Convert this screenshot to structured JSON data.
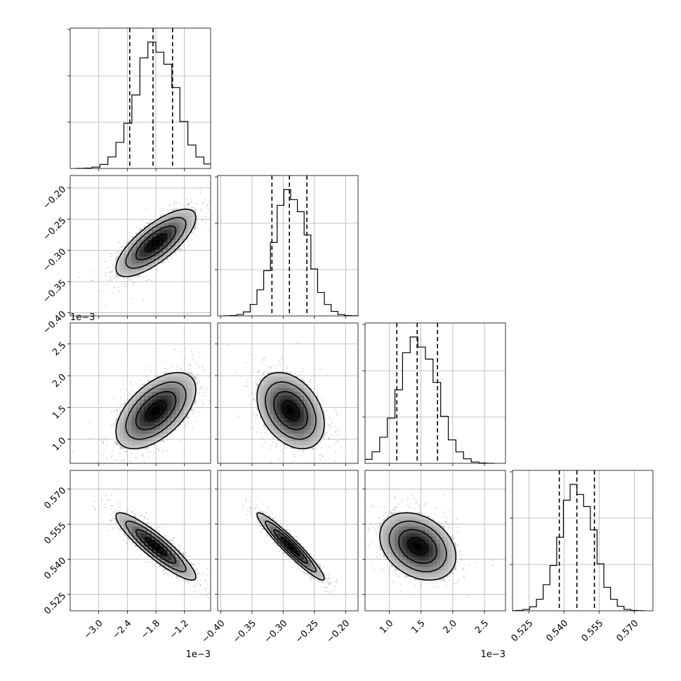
{
  "chart_data": {
    "type": "corner",
    "parameters": [
      {
        "range": [
          -3.6,
          -0.65
        ],
        "ticks": [
          -3.0,
          -2.4,
          -1.8,
          -1.2
        ],
        "tick_labels": [
          "−3.0",
          "−2.4",
          "−1.8",
          "−1.2"
        ],
        "offset_label": "1e−3",
        "mean": -1.8,
        "sd": 0.42,
        "quantiles": [
          -2.35,
          -1.86,
          -1.45
        ]
      },
      {
        "range": [
          -0.405,
          -0.18
        ],
        "ticks": [
          -0.4,
          -0.35,
          -0.3,
          -0.25,
          -0.2
        ],
        "tick_labels": [
          "−0.40",
          "−0.35",
          "−0.30",
          "−0.25",
          "−0.20"
        ],
        "offset_label": "",
        "mean": -0.288,
        "sd": 0.027,
        "quantiles": [
          -0.318,
          -0.29,
          -0.262
        ]
      },
      {
        "range": [
          0.62,
          2.83
        ],
        "ticks": [
          1.0,
          1.5,
          2.0,
          2.5
        ],
        "tick_labels": [
          "1.0",
          "1.5",
          "2.0",
          "2.5"
        ],
        "offset_label": "1e−3",
        "mean": 1.45,
        "sd": 0.3,
        "quantiles": [
          1.12,
          1.44,
          1.76
        ]
      },
      {
        "range": [
          0.518,
          0.578
        ],
        "ticks": [
          0.525,
          0.54,
          0.555,
          0.57
        ],
        "tick_labels": [
          "0.525",
          "0.540",
          "0.555",
          "0.570"
        ],
        "offset_label": "",
        "mean": 0.5455,
        "sd": 0.0072,
        "quantiles": [
          0.538,
          0.5455,
          0.553
        ]
      }
    ],
    "correlations": [
      [
        1,
        0.75,
        0.55,
        -0.9
      ],
      [
        0.75,
        1,
        -0.35,
        -0.95
      ],
      [
        0.55,
        -0.35,
        1,
        -0.3
      ],
      [
        -0.9,
        -0.95,
        -0.3,
        1
      ]
    ],
    "grid": true,
    "quantile_style": "dashed",
    "contour_levels": 3
  }
}
